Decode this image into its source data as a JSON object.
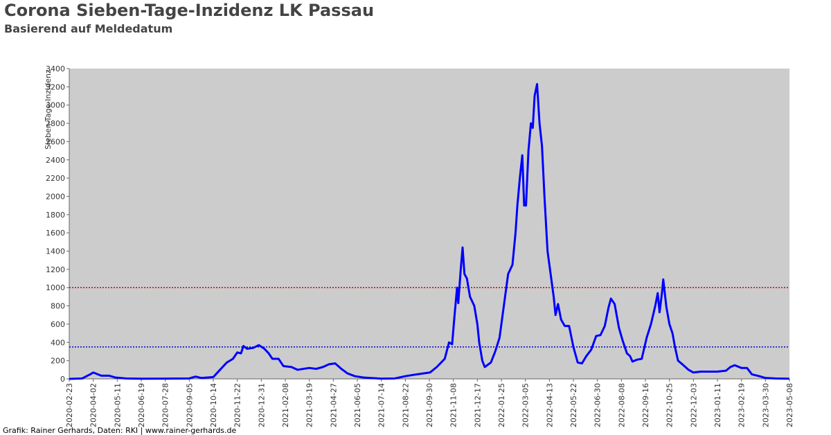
{
  "chart_data": {
    "type": "line",
    "title": "Corona Sieben-Tage-Inzidenz LK Passau",
    "subtitle": "Basierend auf Meldedatum",
    "y_label": "Sieben-Tage-Inzidenz",
    "footer": "Grafik: Rainer Gerhards, Daten: RKI | www.rainer-gerhards.de",
    "color": "#0000ff",
    "plot_background": "#cccccc",
    "reference_lines": [
      {
        "value": 1000,
        "color": "#cc0000"
      },
      {
        "value": 350,
        "color": "#0000cc"
      }
    ],
    "xlim": [
      "2020-02-23",
      "2023-05-08"
    ],
    "xticks": [
      "2020-02-23",
      "2020-04-02",
      "2020-05-11",
      "2020-06-19",
      "2020-07-28",
      "2020-09-05",
      "2020-10-14",
      "2020-11-22",
      "2020-12-31",
      "2021-02-08",
      "2021-03-19",
      "2021-04-27",
      "2021-06-05",
      "2021-07-14",
      "2021-08-22",
      "2021-09-30",
      "2021-11-08",
      "2021-12-17",
      "2022-01-25",
      "2022-03-05",
      "2022-04-13",
      "2022-05-22",
      "2022-06-30",
      "2022-08-08",
      "2022-09-16",
      "2022-10-25",
      "2022-12-03",
      "2023-01-11",
      "2023-02-19",
      "2023-03-30",
      "2023-05-08"
    ],
    "ylim": [
      0,
      3400
    ],
    "yticks": [
      0,
      200,
      400,
      600,
      800,
      1000,
      1200,
      1400,
      1600,
      1800,
      2000,
      2200,
      2400,
      2600,
      2800,
      3000,
      3200,
      3400
    ],
    "x": [
      "2020-02-23",
      "2020-03-15",
      "2020-03-28",
      "2020-04-02",
      "2020-04-15",
      "2020-04-28",
      "2020-05-08",
      "2020-05-25",
      "2020-06-19",
      "2020-07-28",
      "2020-09-05",
      "2020-09-15",
      "2020-09-25",
      "2020-10-14",
      "2020-10-25",
      "2020-11-05",
      "2020-11-15",
      "2020-11-22",
      "2020-11-28",
      "2020-12-02",
      "2020-12-08",
      "2020-12-18",
      "2020-12-27",
      "2021-01-05",
      "2021-01-12",
      "2021-01-18",
      "2021-01-28",
      "2021-02-05",
      "2021-02-18",
      "2021-02-28",
      "2021-03-19",
      "2021-03-30",
      "2021-04-10",
      "2021-04-20",
      "2021-04-30",
      "2021-05-10",
      "2021-05-20",
      "2021-06-01",
      "2021-06-15",
      "2021-06-25",
      "2021-07-14",
      "2021-08-05",
      "2021-08-22",
      "2021-09-05",
      "2021-09-20",
      "2021-10-01",
      "2021-10-12",
      "2021-10-25",
      "2021-11-01",
      "2021-11-06",
      "2021-11-10",
      "2021-11-14",
      "2021-11-16",
      "2021-11-20",
      "2021-11-23",
      "2021-11-26",
      "2021-11-30",
      "2021-12-05",
      "2021-12-12",
      "2021-12-17",
      "2021-12-20",
      "2021-12-25",
      "2021-12-29",
      "2022-01-08",
      "2022-01-15",
      "2022-01-22",
      "2022-01-29",
      "2022-02-05",
      "2022-02-12",
      "2022-02-17",
      "2022-02-20",
      "2022-02-24",
      "2022-02-28",
      "2022-03-03",
      "2022-03-06",
      "2022-03-10",
      "2022-03-14",
      "2022-03-17",
      "2022-03-20",
      "2022-03-24",
      "2022-03-28",
      "2022-04-01",
      "2022-04-05",
      "2022-04-10",
      "2022-04-15",
      "2022-04-20",
      "2022-04-23",
      "2022-04-27",
      "2022-05-02",
      "2022-05-08",
      "2022-05-15",
      "2022-05-22",
      "2022-05-29",
      "2022-06-05",
      "2022-06-12",
      "2022-06-20",
      "2022-06-28",
      "2022-07-05",
      "2022-07-12",
      "2022-07-18",
      "2022-07-22",
      "2022-07-28",
      "2022-08-04",
      "2022-08-10",
      "2022-08-17",
      "2022-08-22",
      "2022-08-26",
      "2022-09-02",
      "2022-09-10",
      "2022-09-18",
      "2022-09-25",
      "2022-10-02",
      "2022-10-06",
      "2022-10-09",
      "2022-10-13",
      "2022-10-15",
      "2022-10-20",
      "2022-10-25",
      "2022-10-30",
      "2022-11-03",
      "2022-11-08",
      "2022-11-15",
      "2022-11-25",
      "2022-12-03",
      "2022-12-15",
      "2022-12-28",
      "2023-01-11",
      "2023-01-25",
      "2023-02-01",
      "2023-02-08",
      "2023-02-19",
      "2023-02-28",
      "2023-03-08",
      "2023-03-20",
      "2023-03-30",
      "2023-04-15",
      "2023-05-08"
    ],
    "values": [
      0,
      5,
      50,
      70,
      35,
      35,
      15,
      5,
      2,
      3,
      5,
      25,
      10,
      20,
      100,
      180,
      220,
      290,
      280,
      360,
      330,
      340,
      370,
      330,
      280,
      220,
      220,
      140,
      130,
      100,
      120,
      110,
      130,
      160,
      170,
      110,
      60,
      30,
      15,
      10,
      3,
      5,
      30,
      45,
      60,
      70,
      130,
      220,
      400,
      380,
      700,
      1000,
      830,
      1200,
      1440,
      1150,
      1100,
      900,
      800,
      600,
      400,
      200,
      130,
      180,
      300,
      450,
      800,
      1150,
      1250,
      1600,
      1900,
      2200,
      2450,
      1900,
      1900,
      2500,
      2800,
      2750,
      3100,
      3230,
      2800,
      2550,
      2000,
      1400,
      1150,
      900,
      700,
      820,
      650,
      580,
      580,
      350,
      180,
      170,
      250,
      320,
      470,
      480,
      580,
      780,
      880,
      820,
      560,
      420,
      280,
      250,
      190,
      210,
      220,
      450,
      600,
      800,
      940,
      730,
      950,
      1090,
      790,
      600,
      500,
      350,
      200,
      160,
      100,
      70,
      80,
      80,
      80,
      90,
      130,
      150,
      120,
      120,
      50,
      30,
      10,
      5,
      2
    ]
  }
}
